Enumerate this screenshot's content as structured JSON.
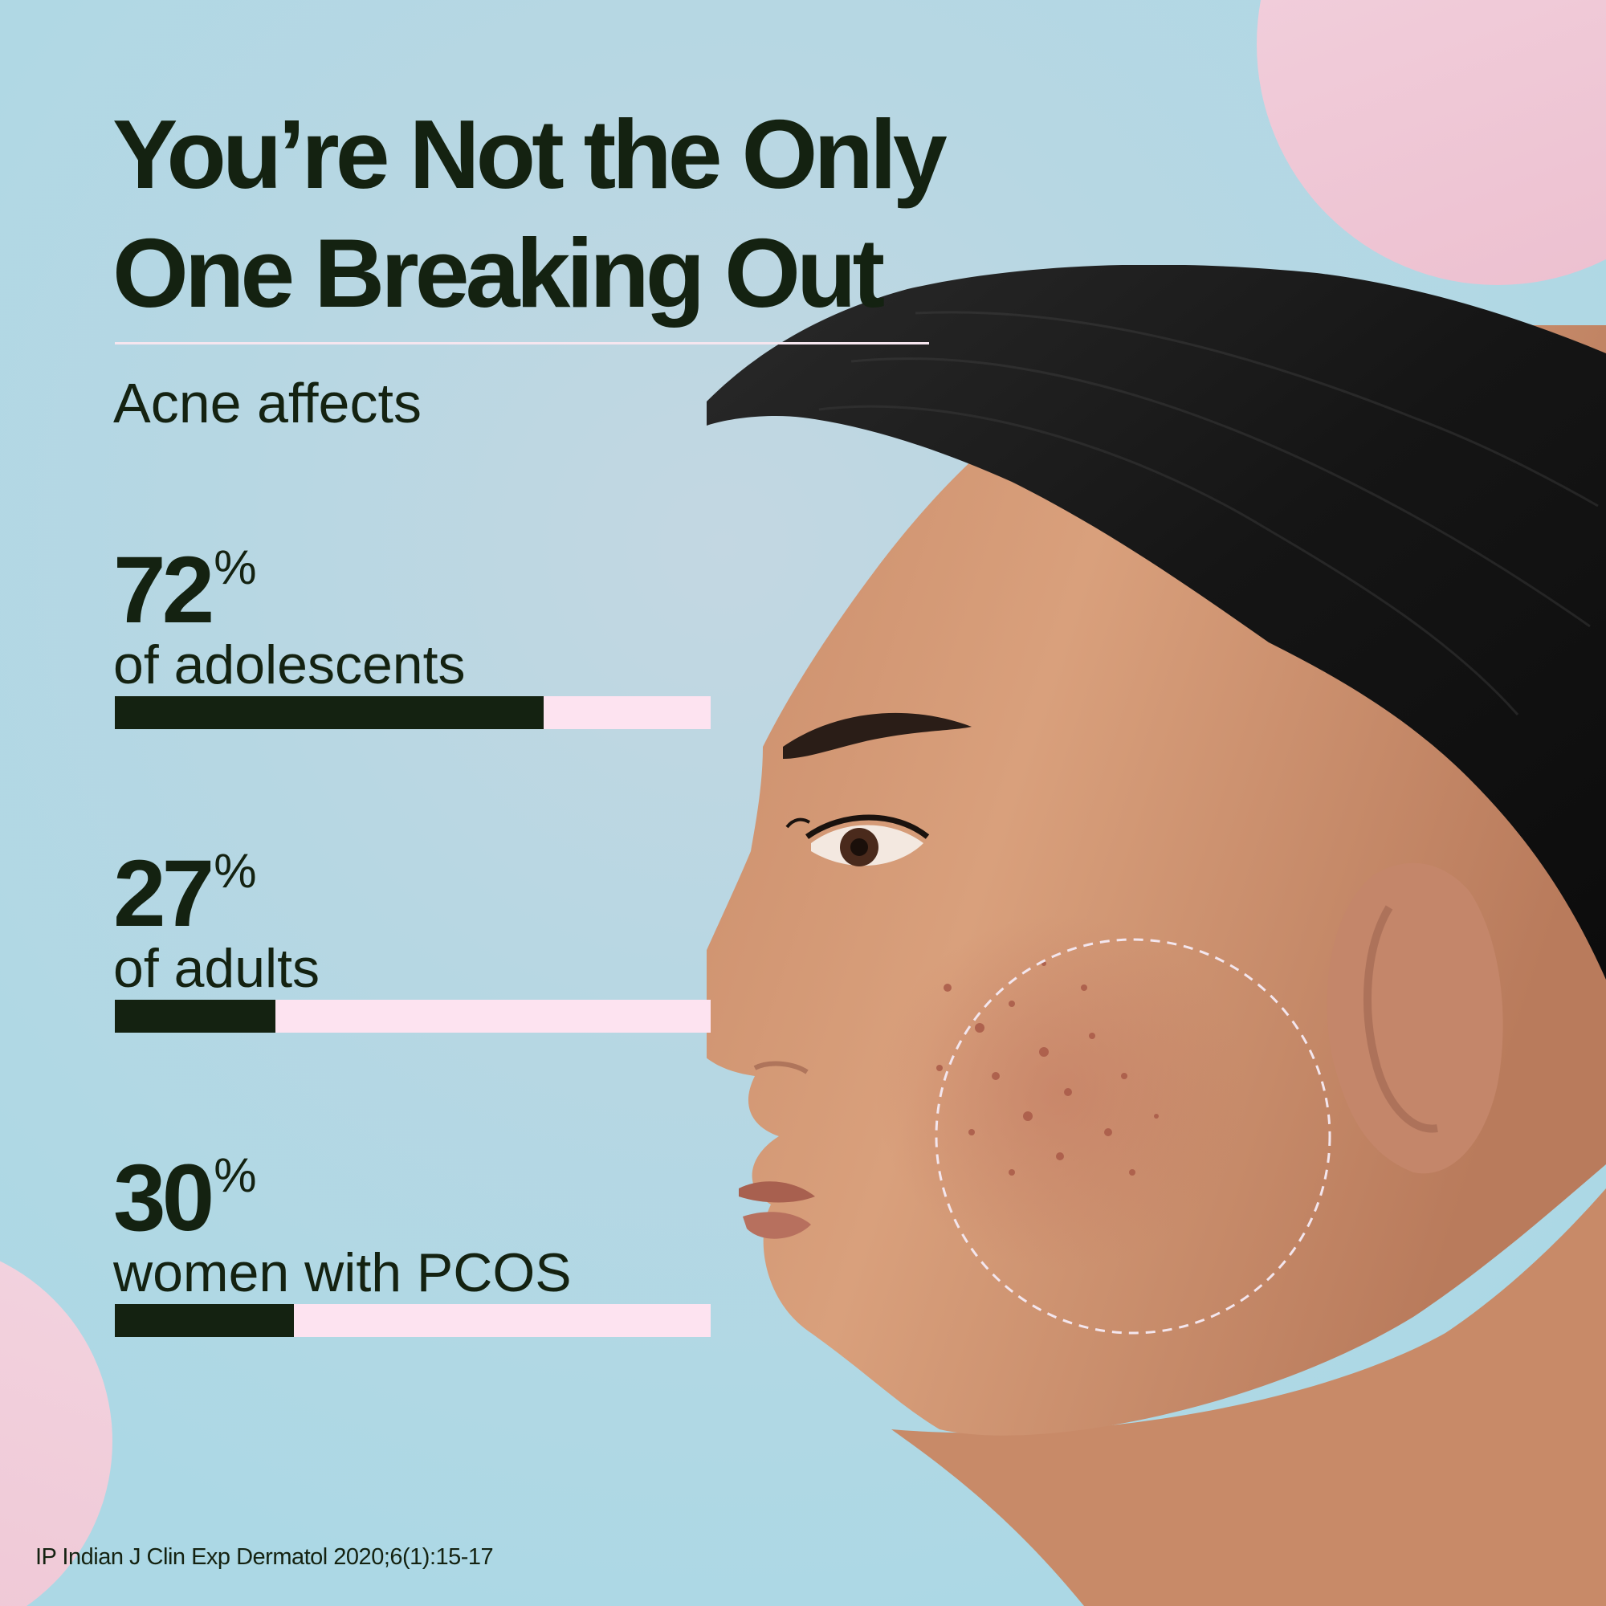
{
  "title_lines": [
    "You’re Not the Only",
    "One Breaking Out"
  ],
  "subtitle": "Acne affects",
  "citation": "IP Indian J Clin Exp Dermatol 2020;6(1):15-17",
  "colors": {
    "text": "#142211",
    "bar_fill": "#142211",
    "bar_track": "#fde3f0",
    "background": "#acd8e5",
    "accent_pink": "#f0c8d6"
  },
  "chart_data": {
    "type": "bar",
    "orientation": "horizontal",
    "title": "You’re Not the Only One Breaking Out",
    "subtitle": "Acne affects",
    "xlim": [
      0,
      100
    ],
    "unit": "%",
    "categories": [
      "of adolescents",
      "of adults",
      "women with PCOS"
    ],
    "values": [
      72,
      27,
      30
    ],
    "value_labels": [
      "72",
      "27",
      "30"
    ]
  }
}
